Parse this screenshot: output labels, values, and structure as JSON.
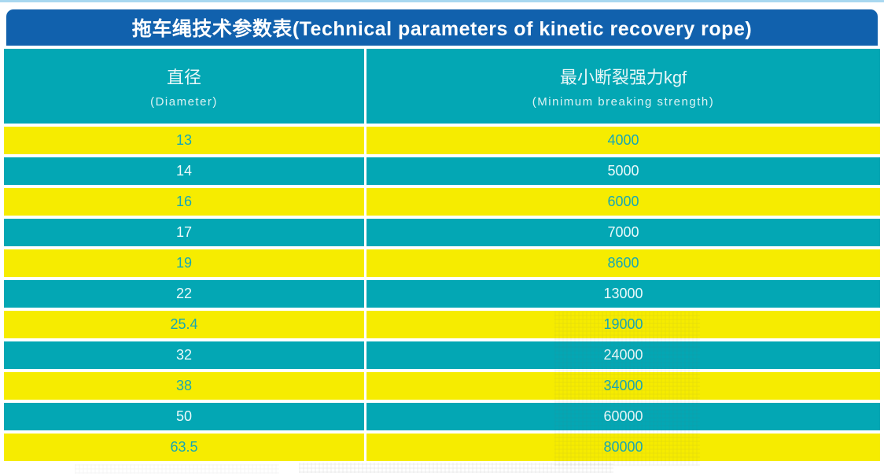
{
  "title_bar": {
    "text": "拖车绳技术参数表(Technical parameters of kinetic recovery rope)"
  },
  "header": {
    "diameter_cn": "直径",
    "diameter_en": "(Diameter)",
    "strength_cn": "最小断裂强力kgf",
    "strength_en": "(Minimum breaking strength)"
  },
  "rows": [
    {
      "diameter": "13",
      "strength": "4000"
    },
    {
      "diameter": "14",
      "strength": "5000"
    },
    {
      "diameter": "16",
      "strength": "6000"
    },
    {
      "diameter": "17",
      "strength": "7000"
    },
    {
      "diameter": "19",
      "strength": "8600"
    },
    {
      "diameter": "22",
      "strength": "13000"
    },
    {
      "diameter": "25.4",
      "strength": "19000"
    },
    {
      "diameter": "32",
      "strength": "24000"
    },
    {
      "diameter": "38",
      "strength": "34000"
    },
    {
      "diameter": "50",
      "strength": "60000"
    },
    {
      "diameter": "63.5",
      "strength": "80000"
    }
  ],
  "colors": {
    "title_bar_bg": "#1161ad",
    "teal": "#03a7b4",
    "yellow": "#f6ec00",
    "number_on_yellow": "#16a8b4",
    "number_on_teal": "#ecfafb",
    "header_text": "#e9f7f8",
    "top_strip": "#a9d8f0"
  },
  "chart_data": {
    "type": "table",
    "title": "拖车绳技术参数表(Technical parameters of kinetic recovery rope)",
    "columns": [
      "直径 (Diameter)",
      "最小断裂强力kgf (Minimum breaking strength)"
    ],
    "rows": [
      [
        13,
        4000
      ],
      [
        14,
        5000
      ],
      [
        16,
        6000
      ],
      [
        17,
        7000
      ],
      [
        19,
        8600
      ],
      [
        22,
        13000
      ],
      [
        25.4,
        19000
      ],
      [
        32,
        24000
      ],
      [
        38,
        34000
      ],
      [
        50,
        60000
      ],
      [
        63.5,
        80000
      ]
    ]
  }
}
